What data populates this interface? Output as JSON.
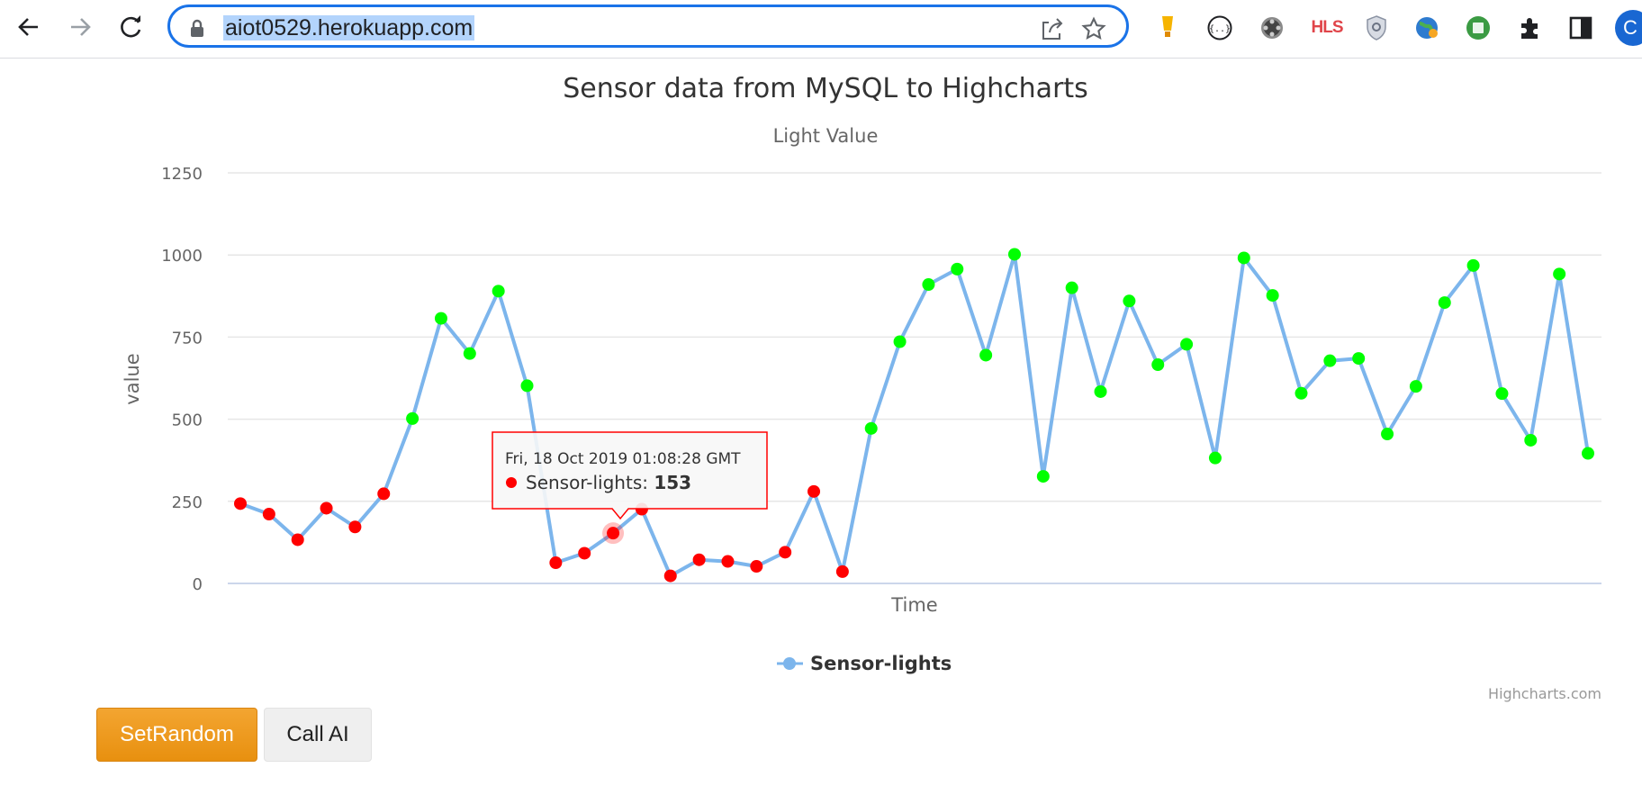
{
  "browser": {
    "url": "aiot0529.herokuapp.com",
    "extensions": [
      "bulb-extension-icon",
      "json-extension-icon",
      "film-extension-icon",
      "hls-extension-icon",
      "shield-extension-icon",
      "globe-extension-icon",
      "green-extension-icon",
      "puzzle-icon",
      "sidepanel-icon",
      "profile-avatar"
    ],
    "hls_label": "HLS",
    "profile_initial": "C"
  },
  "chart_data": {
    "type": "line",
    "title": "Sensor data from MySQL to Highcharts",
    "subtitle": "Light Value",
    "xlabel": "Time",
    "ylabel": "value",
    "ylim": [
      0,
      1250
    ],
    "yticks": [
      0,
      250,
      500,
      750,
      1000,
      1250
    ],
    "grid": true,
    "legend": "bottom-center",
    "credits": "Highcharts.com",
    "series": [
      {
        "name": "Sensor-lights",
        "color": "#7cb5ec",
        "values": [
          243,
          211,
          133,
          229,
          172,
          273,
          502,
          807,
          700,
          890,
          602,
          63,
          92,
          153,
          226,
          23,
          72,
          67,
          52,
          95,
          280,
          36,
          472,
          736,
          910,
          957,
          695,
          1002,
          326,
          900,
          584,
          860,
          666,
          728,
          382,
          991,
          877,
          579,
          678,
          685,
          455,
          600,
          855,
          968,
          578,
          436,
          942,
          396
        ]
      }
    ],
    "point_colors": {
      "below_threshold": "#ff0000",
      "above_threshold": "#00ff00"
    },
    "threshold": 300,
    "tooltip": {
      "point_index": 13,
      "date_label": "Fri, 18 Oct 2019 01:08:28 GMT",
      "series_label": "Sensor-lights",
      "value_label": "153",
      "border_color": "#ff0000"
    }
  },
  "buttons": {
    "set_random": "SetRandom",
    "call_ai": "Call AI"
  }
}
